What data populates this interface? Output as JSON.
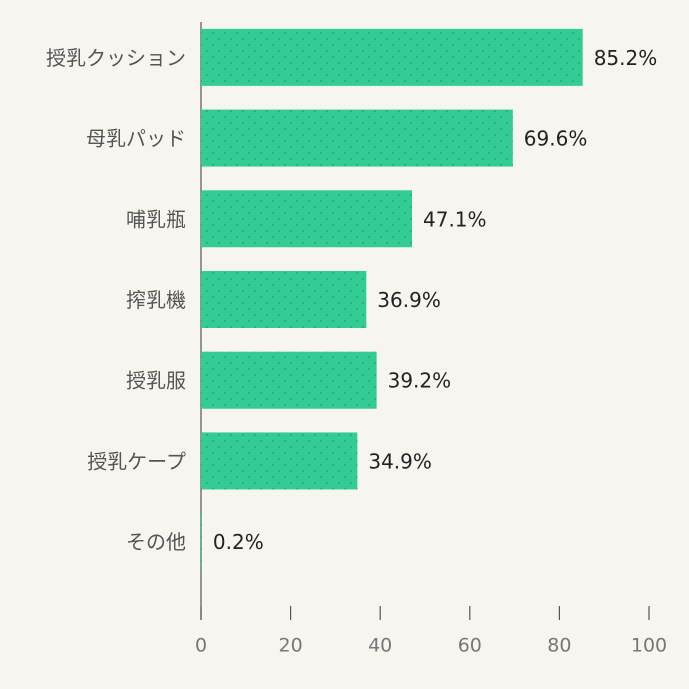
{
  "chart_data": {
    "type": "bar",
    "orientation": "horizontal",
    "categories": [
      "授乳クッション",
      "母乳パッド",
      "哺乳瓶",
      "搾乳機",
      "授乳服",
      "授乳ケープ",
      "その他"
    ],
    "values": [
      85.2,
      69.6,
      47.1,
      36.9,
      39.2,
      34.9,
      0.2
    ],
    "value_labels": [
      "85.2%",
      "69.6%",
      "47.1%",
      "36.9%",
      "39.2%",
      "34.9%",
      "0.2%"
    ],
    "color": "#33cc95",
    "xlim": [
      0,
      100
    ],
    "xticks": [
      0,
      20,
      40,
      60,
      80,
      100
    ]
  }
}
